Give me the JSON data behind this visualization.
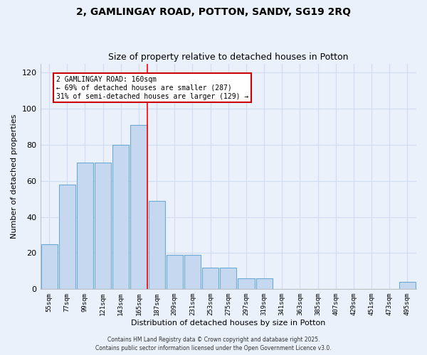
{
  "title1": "2, GAMLINGAY ROAD, POTTON, SANDY, SG19 2RQ",
  "title2": "Size of property relative to detached houses in Potton",
  "xlabel": "Distribution of detached houses by size in Potton",
  "ylabel": "Number of detached properties",
  "categories": [
    "55sqm",
    "77sqm",
    "99sqm",
    "121sqm",
    "143sqm",
    "165sqm",
    "187sqm",
    "209sqm",
    "231sqm",
    "253sqm",
    "275sqm",
    "297sqm",
    "319sqm",
    "341sqm",
    "363sqm",
    "385sqm",
    "407sqm",
    "429sqm",
    "451sqm",
    "473sqm",
    "495sqm"
  ],
  "values": [
    25,
    58,
    70,
    70,
    80,
    91,
    49,
    19,
    19,
    12,
    12,
    6,
    6,
    0,
    0,
    0,
    0,
    0,
    0,
    0,
    4
  ],
  "bar_color": "#c5d8f0",
  "bar_edge_color": "#6aaad4",
  "background_color": "#eaf1fb",
  "grid_color": "#d0ddf0",
  "red_line_index": 5,
  "annotation_text": "2 GAMLINGAY ROAD: 160sqm\n← 69% of detached houses are smaller (287)\n31% of semi-detached houses are larger (129) →",
  "annotation_box_color": "#ffffff",
  "annotation_box_edge": "#cc0000",
  "ylim": [
    0,
    125
  ],
  "yticks": [
    0,
    20,
    40,
    60,
    80,
    100,
    120
  ],
  "footer": "Contains HM Land Registry data © Crown copyright and database right 2025.\nContains public sector information licensed under the Open Government Licence v3.0."
}
